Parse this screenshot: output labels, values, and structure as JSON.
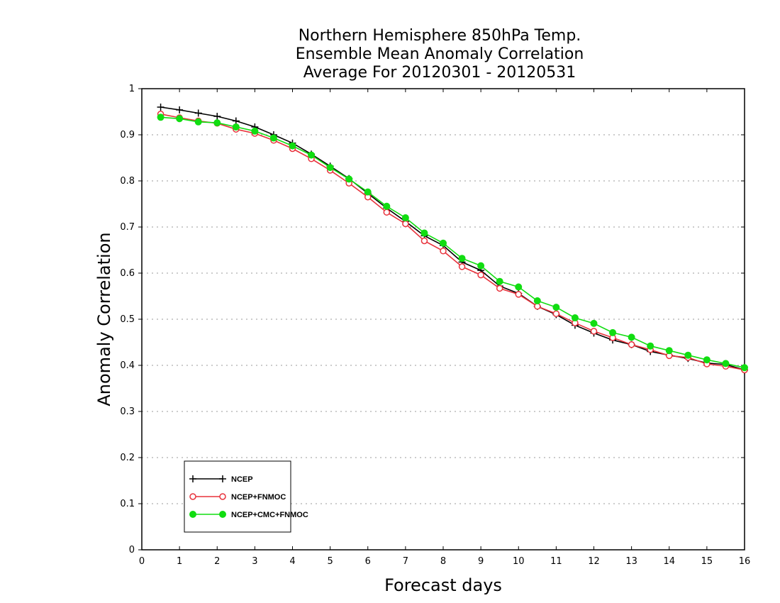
{
  "chart_data": {
    "type": "line",
    "title": [
      "Northern Hemisphere 850hPa Temp.",
      "Ensemble Mean Anomaly Correlation",
      "Average For 20120301 - 20120531"
    ],
    "xlabel": "Forecast days",
    "ylabel": "Anomaly Correlation",
    "xlim": [
      0,
      16
    ],
    "ylim": [
      0,
      1
    ],
    "xticks": [
      0,
      1,
      2,
      3,
      4,
      5,
      6,
      7,
      8,
      9,
      10,
      11,
      12,
      13,
      14,
      15,
      16
    ],
    "yticks": [
      0,
      0.1,
      0.2,
      0.3,
      0.4,
      0.5,
      0.6,
      0.7,
      0.8,
      0.9,
      1
    ],
    "ytick_labels": [
      "0",
      "0.1",
      "0.2",
      "0.3",
      "0.4",
      "0.5",
      "0.6",
      "0.7",
      "0.8",
      "0.9",
      "1"
    ],
    "grid": "horizontal dotted",
    "legend_position": "bottom-left",
    "x": [
      0.5,
      1,
      1.5,
      2,
      2.5,
      3,
      3.5,
      4,
      4.5,
      5,
      5.5,
      6,
      6.5,
      7,
      7.5,
      8,
      8.5,
      9,
      9.5,
      10,
      10.5,
      11,
      11.5,
      12,
      12.5,
      13,
      13.5,
      14,
      14.5,
      15,
      15.5,
      16
    ],
    "series": [
      {
        "name": "NCEP",
        "color": "#000000",
        "marker": "plus",
        "values": [
          0.96,
          0.954,
          0.947,
          0.94,
          0.93,
          0.917,
          0.9,
          0.882,
          0.858,
          0.832,
          0.805,
          0.773,
          0.741,
          0.712,
          0.681,
          0.66,
          0.624,
          0.606,
          0.572,
          0.556,
          0.528,
          0.51,
          0.487,
          0.47,
          0.455,
          0.445,
          0.43,
          0.422,
          0.415,
          0.405,
          0.402,
          0.39
        ]
      },
      {
        "name": "NCEP+FNMOC",
        "color": "#e8323c",
        "marker": "open-circle",
        "values": [
          0.945,
          0.937,
          0.93,
          0.925,
          0.912,
          0.903,
          0.888,
          0.87,
          0.848,
          0.823,
          0.795,
          0.765,
          0.732,
          0.707,
          0.67,
          0.648,
          0.614,
          0.596,
          0.567,
          0.554,
          0.528,
          0.512,
          0.492,
          0.474,
          0.46,
          0.445,
          0.434,
          0.421,
          0.417,
          0.403,
          0.398,
          0.39
        ]
      },
      {
        "name": "NCEP+CMC+FNMOC",
        "color": "#11dd11",
        "marker": "filled-circle",
        "values": [
          0.938,
          0.935,
          0.928,
          0.926,
          0.917,
          0.908,
          0.893,
          0.876,
          0.856,
          0.829,
          0.804,
          0.776,
          0.745,
          0.72,
          0.687,
          0.665,
          0.632,
          0.616,
          0.582,
          0.57,
          0.54,
          0.526,
          0.503,
          0.491,
          0.471,
          0.461,
          0.442,
          0.432,
          0.422,
          0.412,
          0.404,
          0.395
        ]
      }
    ]
  }
}
